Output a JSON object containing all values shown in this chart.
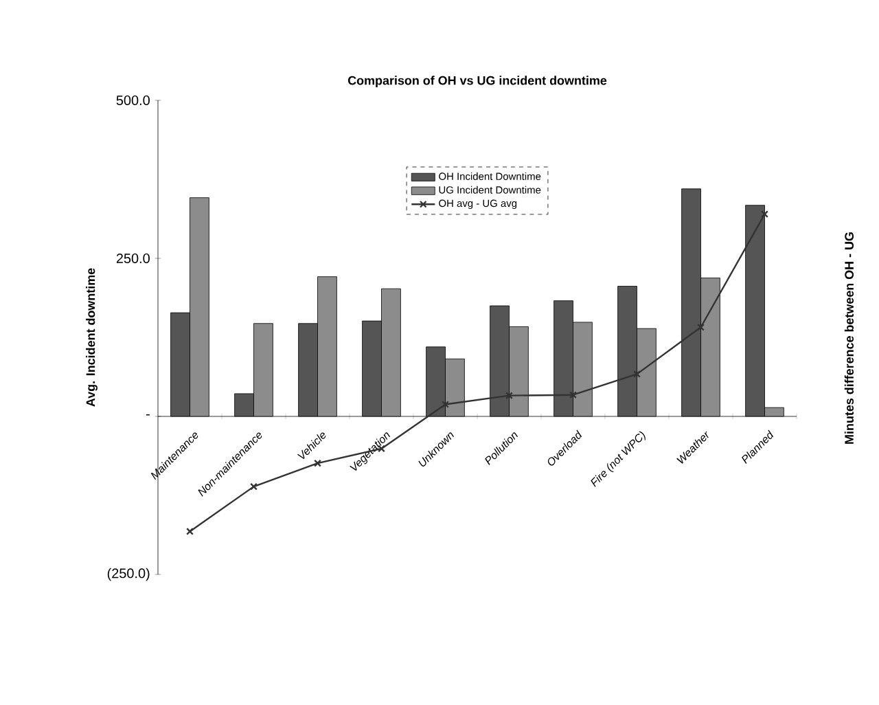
{
  "chart_data": {
    "type": "bar",
    "title": "Comparison of OH vs UG incident downtime",
    "ylabel": "Avg. Incident downtime",
    "y2label": "Minutes difference between OH - UG",
    "categories": [
      "Maintenance",
      "Non-maintenance",
      "Vehicle",
      "Vegetation",
      "Unknown",
      "Pollution",
      "Overload",
      "Fire (not WPC)",
      "Weather",
      "Planned"
    ],
    "series": [
      {
        "name": "OH Incident Downtime",
        "color": "#555555",
        "values": [
          164,
          36,
          147,
          151,
          110,
          175,
          183,
          206,
          360,
          334
        ]
      },
      {
        "name": "UG Incident Downtime",
        "color": "#8c8c8c",
        "values": [
          346,
          147,
          221,
          202,
          91,
          142,
          149,
          139,
          219,
          14
        ]
      },
      {
        "name": "OH avg - UG avg",
        "type": "line",
        "color": "#333333",
        "marker": "cross",
        "line_style": "solid",
        "values": [
          -182,
          -111,
          -74,
          -51,
          19,
          33,
          34,
          67,
          141,
          320
        ]
      }
    ],
    "ylim": [
      -250,
      500
    ],
    "yticks": [
      {
        "value": -250,
        "label": "(250.0)"
      },
      {
        "value": 0,
        "label": "-"
      },
      {
        "value": 250,
        "label": "250.0"
      },
      {
        "value": 500,
        "label": "500.0"
      }
    ],
    "grid": false,
    "legend": "top"
  }
}
